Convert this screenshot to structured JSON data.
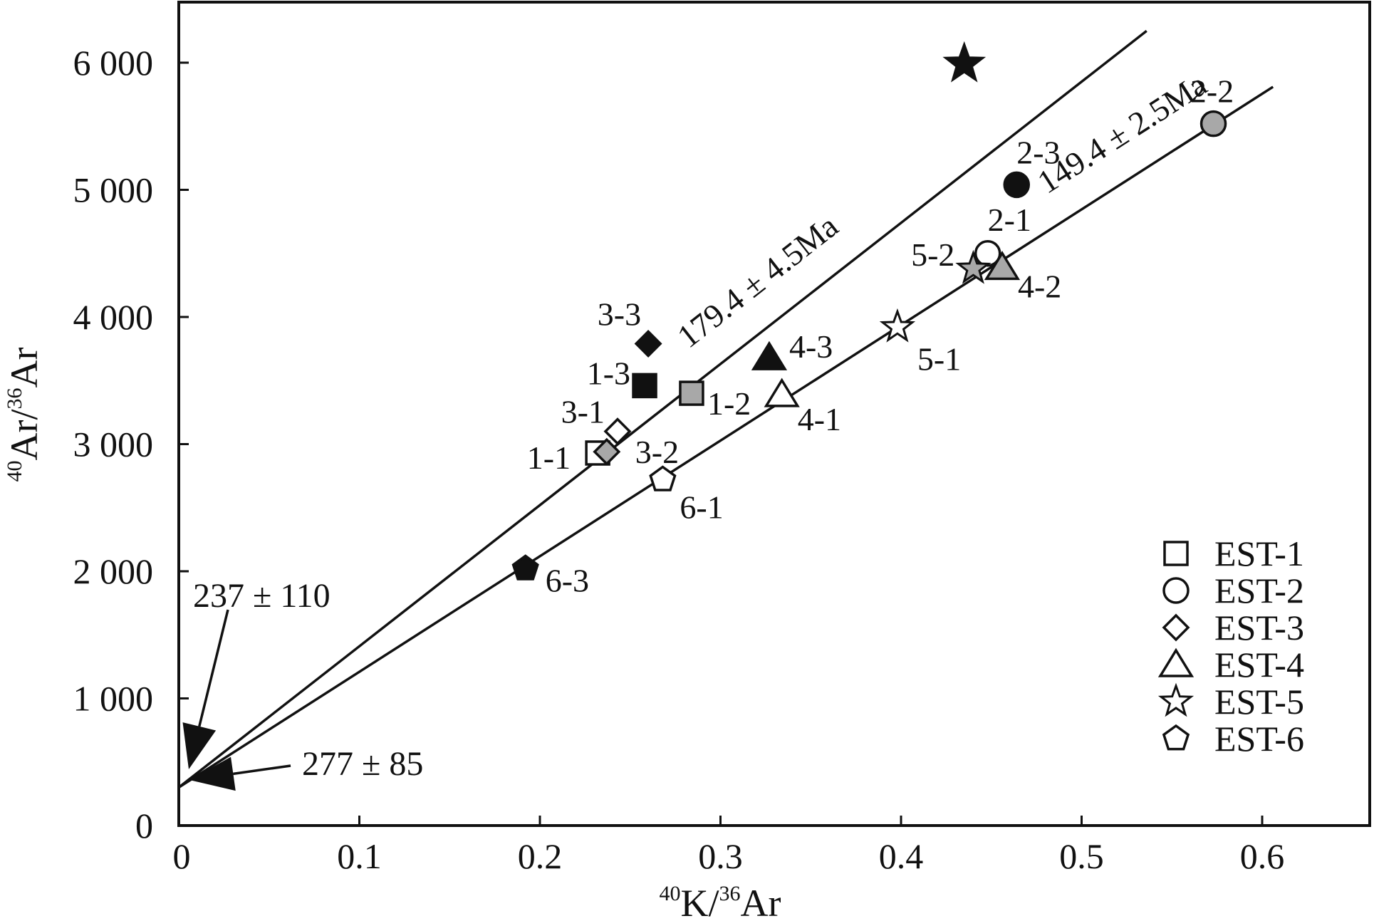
{
  "chart_data": {
    "type": "scatter",
    "xlabel": {
      "sup": "40",
      "base": "K/",
      "sup2": "36",
      "base2": "Ar"
    },
    "ylabel": {
      "sup": "40",
      "base": "Ar/",
      "sup2": "36",
      "base2": "Ar"
    },
    "xlim": [
      0,
      0.655
    ],
    "ylim": [
      0,
      6450
    ],
    "x_ticks": [
      {
        "value": 0,
        "label": "0"
      },
      {
        "value": 0.1,
        "label": "0.1"
      },
      {
        "value": 0.2,
        "label": "0.2"
      },
      {
        "value": 0.3,
        "label": "0.3"
      },
      {
        "value": 0.4,
        "label": "0.4"
      },
      {
        "value": 0.5,
        "label": "0.5"
      },
      {
        "value": 0.6,
        "label": "0.6"
      }
    ],
    "y_ticks": [
      {
        "value": 0,
        "label": "0"
      },
      {
        "value": 1000,
        "label": "1 000"
      },
      {
        "value": 2000,
        "label": "2 000"
      },
      {
        "value": 3000,
        "label": "3 000"
      },
      {
        "value": 4000,
        "label": "4 000"
      },
      {
        "value": 5000,
        "label": "5 000"
      },
      {
        "value": 6000,
        "label": "6 000"
      }
    ],
    "grid": false,
    "legend_position": "bottom-right",
    "series": [
      {
        "name": "EST-1",
        "marker": "square",
        "points": [
          {
            "label": "1-1",
            "x": 0.232,
            "y": 2930,
            "fill": "#ffffff"
          },
          {
            "label": "1-2",
            "x": 0.284,
            "y": 3400,
            "fill": "#a8a8a8"
          },
          {
            "label": "1-3",
            "x": 0.258,
            "y": 3460,
            "fill": "#111111"
          }
        ]
      },
      {
        "name": "EST-2",
        "marker": "circle",
        "points": [
          {
            "label": "2-1",
            "x": 0.448,
            "y": 4500,
            "fill": "#ffffff"
          },
          {
            "label": "2-2",
            "x": 0.573,
            "y": 5520,
            "fill": "#a8a8a8"
          },
          {
            "label": "2-3",
            "x": 0.464,
            "y": 5040,
            "fill": "#111111"
          }
        ]
      },
      {
        "name": "EST-3",
        "marker": "diamond",
        "points": [
          {
            "label": "3-1",
            "x": 0.243,
            "y": 3100,
            "fill": "#ffffff"
          },
          {
            "label": "3-2",
            "x": 0.237,
            "y": 2940,
            "fill": "#a8a8a8"
          },
          {
            "label": "3-3",
            "x": 0.26,
            "y": 3790,
            "fill": "#111111"
          }
        ]
      },
      {
        "name": "EST-4",
        "marker": "triangle",
        "points": [
          {
            "label": "4-1",
            "x": 0.334,
            "y": 3390,
            "fill": "#ffffff"
          },
          {
            "label": "4-2",
            "x": 0.456,
            "y": 4390,
            "fill": "#a8a8a8"
          },
          {
            "label": "4-3",
            "x": 0.327,
            "y": 3680,
            "fill": "#111111"
          }
        ]
      },
      {
        "name": "EST-5",
        "marker": "star",
        "points": [
          {
            "label": "5-1",
            "x": 0.398,
            "y": 3920,
            "fill": "#ffffff"
          },
          {
            "label": "5-2",
            "x": 0.44,
            "y": 4380,
            "fill": "#a8a8a8"
          },
          {
            "label": "",
            "x": 0.435,
            "y": 5990,
            "fill": "#111111"
          }
        ]
      },
      {
        "name": "EST-6",
        "marker": "pentagon",
        "points": [
          {
            "label": "6-1",
            "x": 0.268,
            "y": 2720,
            "fill": "#ffffff"
          },
          {
            "label": "6-3",
            "x": 0.192,
            "y": 2020,
            "fill": "#111111"
          }
        ]
      }
    ],
    "fit_lines": [
      {
        "label": "179.4 ± 4.5Ma",
        "x": [
          0,
          0.536
        ],
        "y": [
          300,
          6250
        ]
      },
      {
        "label": "149.4 ± 2.5Ma",
        "x": [
          0,
          0.606
        ],
        "y": [
          300,
          5810
        ]
      }
    ],
    "intercepts": [
      {
        "label": "237 ± 110",
        "value": 237
      },
      {
        "label": "277 ± 85",
        "value": 277
      }
    ]
  }
}
